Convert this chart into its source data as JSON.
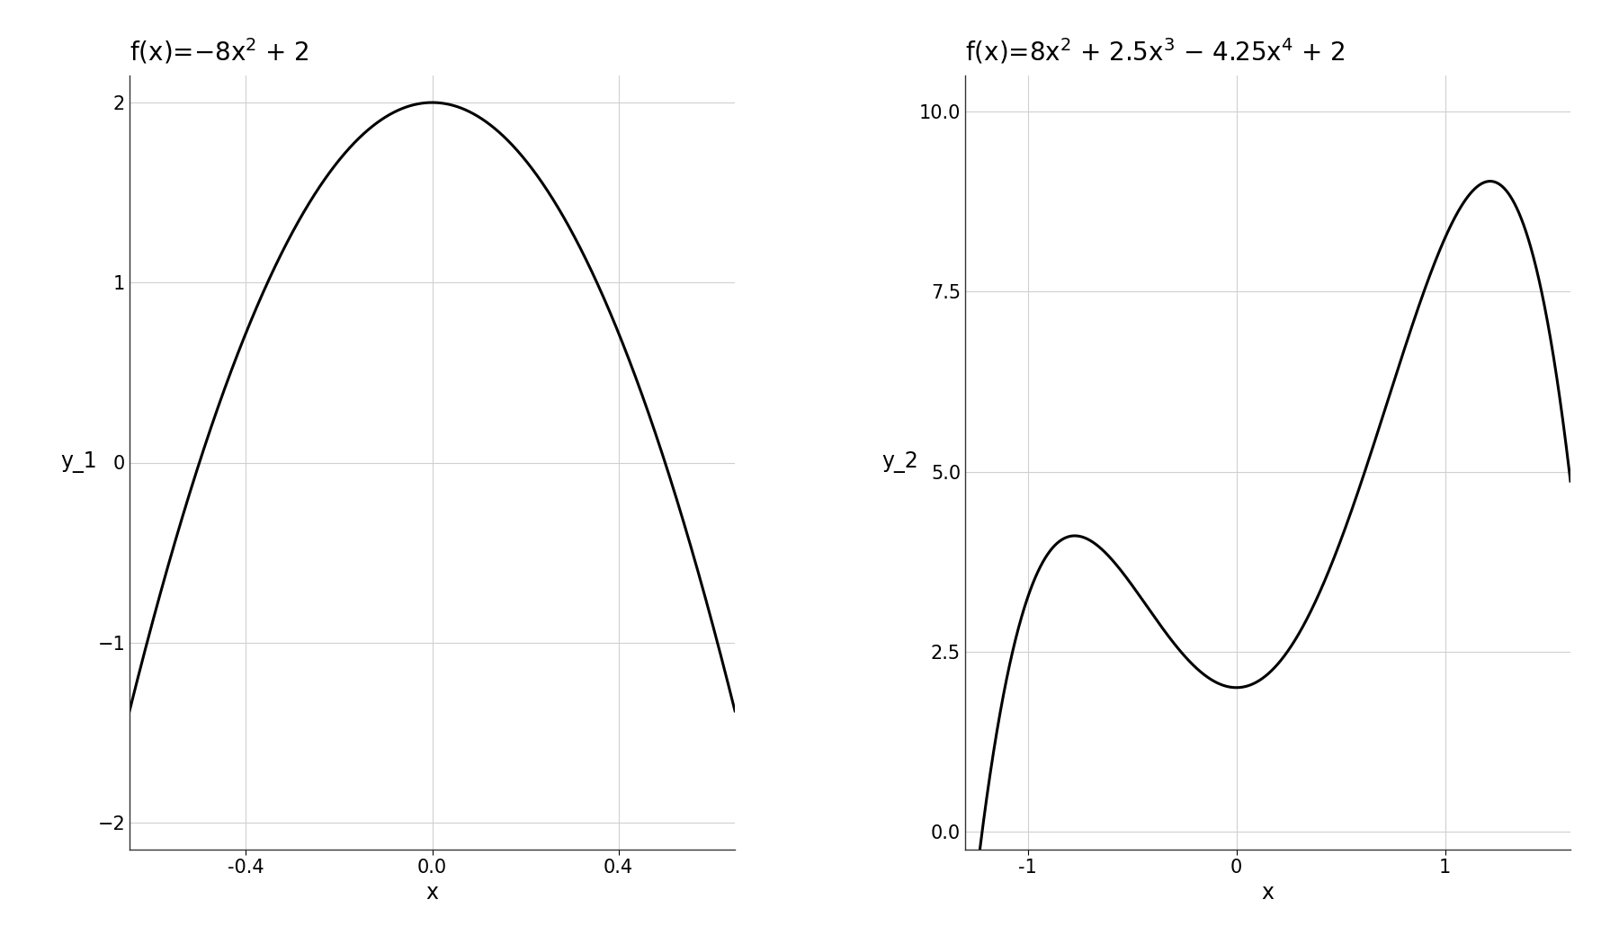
{
  "left_xlabel": "x",
  "right_xlabel": "x",
  "left_ylabel": "y_1",
  "right_ylabel": "y_2",
  "left_xlim": [
    -0.65,
    0.65
  ],
  "left_ylim": [
    -2.15,
    2.15
  ],
  "right_xlim": [
    -1.3,
    1.6
  ],
  "right_ylim": [
    -0.25,
    10.5
  ],
  "left_xticks": [
    -0.4,
    0.0,
    0.4
  ],
  "right_xticks": [
    -1.0,
    0.0,
    1.0
  ],
  "left_yticks": [
    -2,
    -1,
    0,
    1,
    2
  ],
  "right_yticks": [
    0.0,
    2.5,
    5.0,
    7.5,
    10.0
  ],
  "line_color": "#000000",
  "line_width": 2.2,
  "background_color": "#ffffff",
  "grid_color": "#d0d0d0",
  "title_fontsize": 20,
  "label_fontsize": 17,
  "tick_fontsize": 15,
  "left_title_parts": [
    "f(x)=",
    "-8x",
    "2",
    " + 2"
  ],
  "right_title_parts": [
    "f(x)=",
    "8x",
    "2",
    " + 2.5x",
    "3",
    " − 4.25x",
    "4",
    " + 2"
  ]
}
